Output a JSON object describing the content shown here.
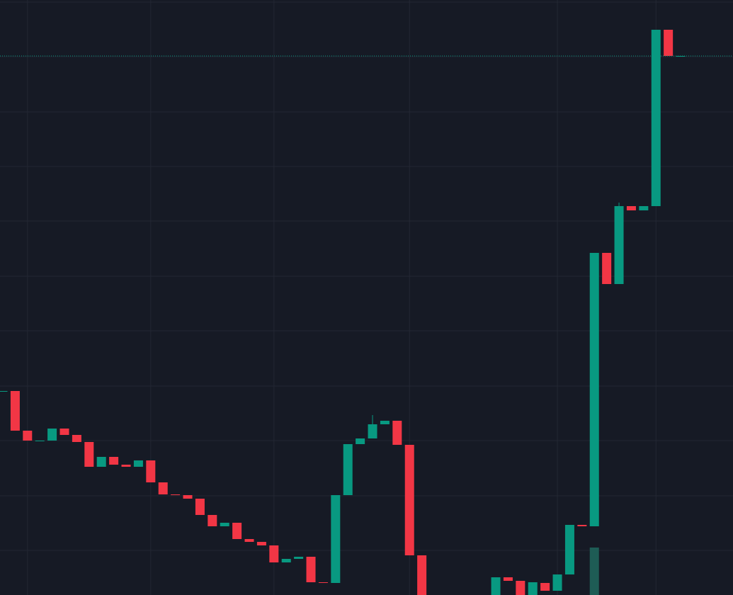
{
  "chart_data": {
    "type": "candlestick",
    "up_color": "#089981",
    "down_color": "#f23645",
    "volume_color": "#1e5c55",
    "grid": true,
    "last_price_line": true,
    "xlim": [
      -0.23,
      59.25
    ],
    "ylim": [
      0,
      840
    ],
    "xticks": [
      2,
      12,
      22,
      33,
      45,
      53
    ],
    "yticks": [
      63,
      140,
      218,
      295,
      373,
      450,
      528,
      605,
      682,
      760,
      837
    ],
    "x": [
      0,
      1,
      2,
      3,
      4,
      5,
      6,
      7,
      8,
      9,
      10,
      11,
      12,
      13,
      14,
      15,
      16,
      17,
      18,
      19,
      20,
      21,
      22,
      23,
      24,
      25,
      26,
      27,
      28,
      29,
      30,
      31,
      32,
      33,
      34,
      35,
      36,
      37,
      38,
      39,
      40,
      41,
      42,
      43,
      44,
      45,
      46,
      47,
      48,
      49,
      50,
      51,
      52,
      53,
      54,
      55
    ],
    "open": [
      288,
      288,
      232,
      218,
      218,
      235,
      226,
      216,
      181,
      195,
      184,
      181,
      190,
      159,
      142,
      141,
      136,
      113,
      97,
      102,
      79,
      75,
      70,
      46,
      51,
      54,
      18,
      17,
      141,
      213,
      221,
      241,
      246,
      212,
      56,
      null,
      null,
      null,
      null,
      null,
      -5,
      25,
      20,
      0,
      17,
      6,
      29,
      99,
      97,
      483,
      439,
      549,
      543,
      549,
      798,
      761
    ],
    "high": [
      288,
      288,
      232,
      218,
      235,
      235,
      226,
      216,
      195,
      195,
      184,
      190,
      190,
      159,
      142,
      141,
      136,
      113,
      102,
      102,
      79,
      75,
      70,
      51,
      54,
      54,
      18,
      141,
      213,
      221,
      254,
      246,
      246,
      212,
      56,
      null,
      null,
      null,
      null,
      null,
      25,
      25,
      20,
      18,
      17,
      29,
      99,
      99,
      483,
      483,
      554,
      549,
      549,
      798,
      798,
      761
    ],
    "low": [
      288,
      232,
      218,
      218,
      218,
      226,
      216,
      181,
      181,
      184,
      181,
      181,
      159,
      142,
      141,
      136,
      113,
      97,
      97,
      79,
      75,
      70,
      46,
      46,
      51,
      18,
      17,
      17,
      141,
      213,
      221,
      241,
      212,
      56,
      -20,
      null,
      null,
      null,
      null,
      null,
      -5,
      20,
      0,
      0,
      6,
      6,
      29,
      97,
      97,
      439,
      439,
      543,
      543,
      549,
      761,
      761
    ],
    "close": [
      288,
      232,
      218,
      218,
      235,
      226,
      216,
      181,
      195,
      184,
      181,
      190,
      159,
      142,
      141,
      136,
      113,
      97,
      102,
      79,
      75,
      70,
      46,
      51,
      54,
      18,
      17,
      141,
      213,
      221,
      241,
      246,
      212,
      56,
      -20,
      null,
      null,
      null,
      null,
      null,
      25,
      20,
      0,
      18,
      6,
      29,
      99,
      97,
      483,
      439,
      549,
      543,
      549,
      798,
      761,
      761
    ],
    "volume": [
      null,
      null,
      null,
      null,
      null,
      null,
      null,
      null,
      null,
      null,
      null,
      null,
      null,
      null,
      null,
      null,
      null,
      null,
      null,
      null,
      null,
      null,
      null,
      null,
      null,
      null,
      null,
      null,
      null,
      null,
      null,
      null,
      null,
      null,
      null,
      null,
      null,
      null,
      null,
      null,
      null,
      null,
      null,
      null,
      null,
      null,
      null,
      null,
      67,
      null,
      null,
      null,
      null,
      null,
      null,
      null
    ]
  }
}
